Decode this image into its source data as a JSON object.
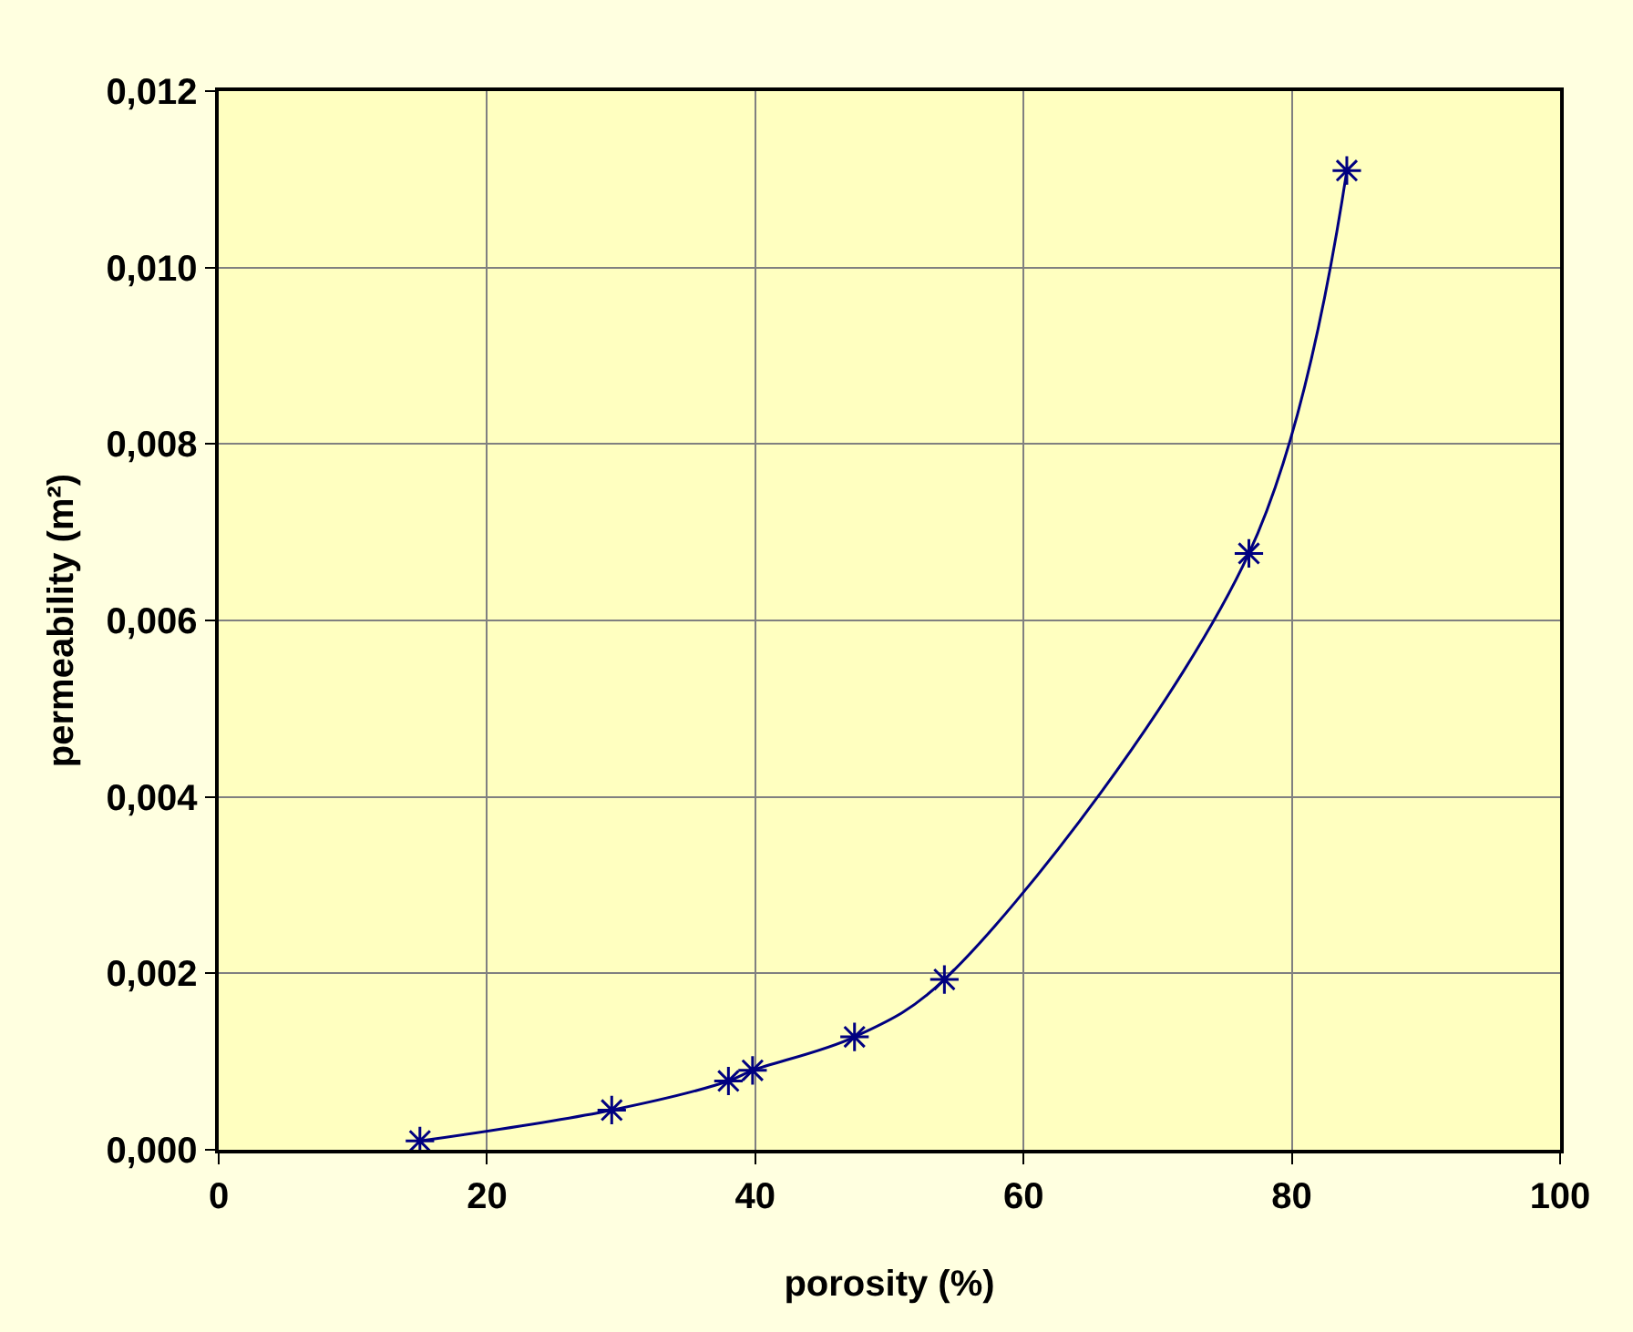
{
  "chart_data": {
    "type": "line",
    "xlabel": "porosity (%)",
    "ylabel": "permeability (m²)",
    "x": [
      15,
      29.3,
      38,
      39.8,
      47.4,
      54.1,
      76.8,
      84.1
    ],
    "series": [
      {
        "color": "#000080",
        "values": [
          0.0001,
          0.00045,
          0.00078,
          0.0009,
          0.00128,
          0.00193,
          0.00676,
          0.0111
        ]
      }
    ],
    "xlim": [
      0,
      100
    ],
    "xticks": [
      0,
      20,
      40,
      60,
      80,
      100
    ],
    "ylim": [
      0,
      0.012
    ],
    "yticks": [
      {
        "value": 0,
        "label": "0,000"
      },
      {
        "value": 0.002,
        "label": "0,002"
      },
      {
        "value": 0.004,
        "label": "0,004"
      },
      {
        "value": 0.006,
        "label": "0,006"
      },
      {
        "value": 0.008,
        "label": "0,008"
      },
      {
        "value": 0.01,
        "label": "0,010"
      },
      {
        "value": 0.012,
        "label": "0,012"
      }
    ],
    "grid": true,
    "marker": "cross",
    "line_style": "solid"
  }
}
